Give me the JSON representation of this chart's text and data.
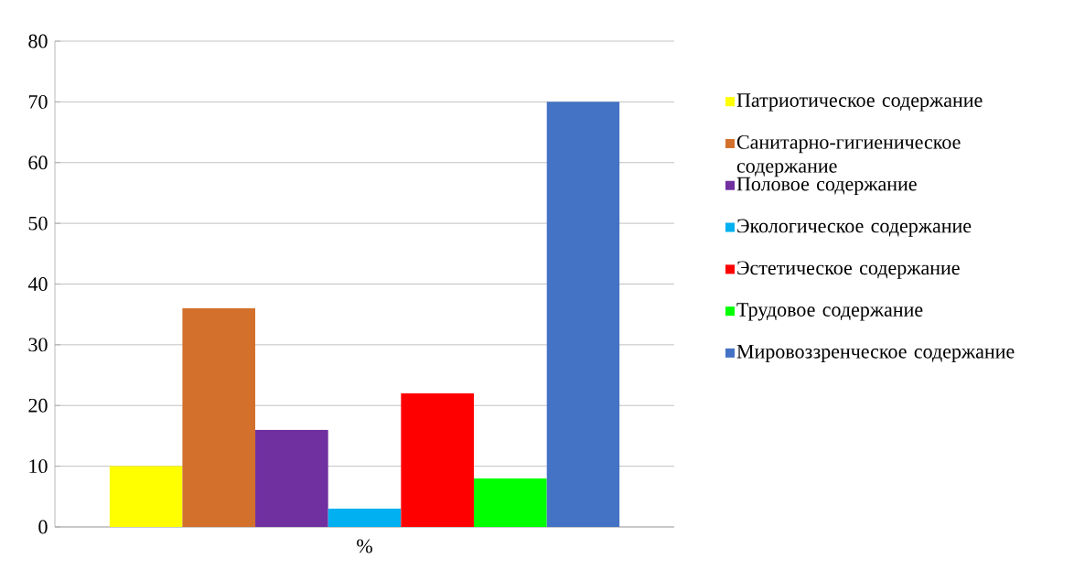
{
  "chart_data": {
    "type": "bar",
    "categories": [
      "%"
    ],
    "series": [
      {
        "name": "Патриотическое содержание",
        "color": "#ffff00",
        "values": [
          10
        ]
      },
      {
        "name": "Санитарно-гигиеническое содержание",
        "color": "#d2702c",
        "values": [
          36
        ]
      },
      {
        "name": "Половое содержание",
        "color": "#7030a0",
        "values": [
          16
        ]
      },
      {
        "name": "Экологическое содержание",
        "color": "#00b0f0",
        "values": [
          3
        ]
      },
      {
        "name": "Эстетическое содержание",
        "color": "#ff0000",
        "values": [
          22
        ]
      },
      {
        "name": "Трудовое содержание",
        "color": "#00ff00",
        "values": [
          8
        ]
      },
      {
        "name": "Мировоззренческое содержание",
        "color": "#4472c4",
        "values": [
          70
        ]
      }
    ],
    "ylim": [
      0,
      80
    ],
    "yticks": [
      0,
      10,
      20,
      30,
      40,
      50,
      60,
      70,
      80
    ],
    "grid": "y",
    "legend": "right"
  }
}
